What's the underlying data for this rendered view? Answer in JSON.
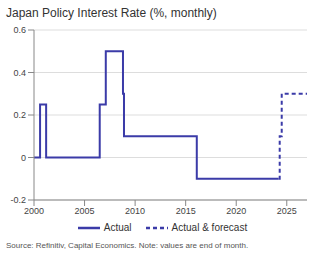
{
  "chart_data": {
    "type": "line",
    "title": "Japan Policy Interest Rate (%, monthly)",
    "source": "Source: Refinitiv, Capital Economics. Note: values are end of month.",
    "xlim": [
      2000,
      2027
    ],
    "xticks": [
      2000,
      2005,
      2010,
      2015,
      2020,
      2025
    ],
    "ylim": [
      -0.2,
      0.6
    ],
    "yticks": [
      -0.2,
      0,
      0.2,
      0.4,
      0.6
    ],
    "grid": true,
    "legend": "bottom",
    "series": [
      {
        "name": "Actual",
        "color": "#3b3ba8",
        "line_style": "solid",
        "x": [
          2000.0,
          2000.6,
          2001.2,
          2006.5,
          2007.1,
          2008.8,
          2008.9,
          2016.1,
          2024.2
        ],
        "values": [
          0,
          0.25,
          0,
          0.25,
          0.5,
          0.3,
          0.1,
          -0.1,
          -0.1
        ]
      },
      {
        "name": "Actual & forecast",
        "color": "#3b3ba8",
        "line_style": "dashed",
        "x": [
          2024.2,
          2024.3,
          2024.5,
          2027
        ],
        "values": [
          -0.1,
          0.1,
          0.3,
          0.3
        ]
      }
    ]
  }
}
